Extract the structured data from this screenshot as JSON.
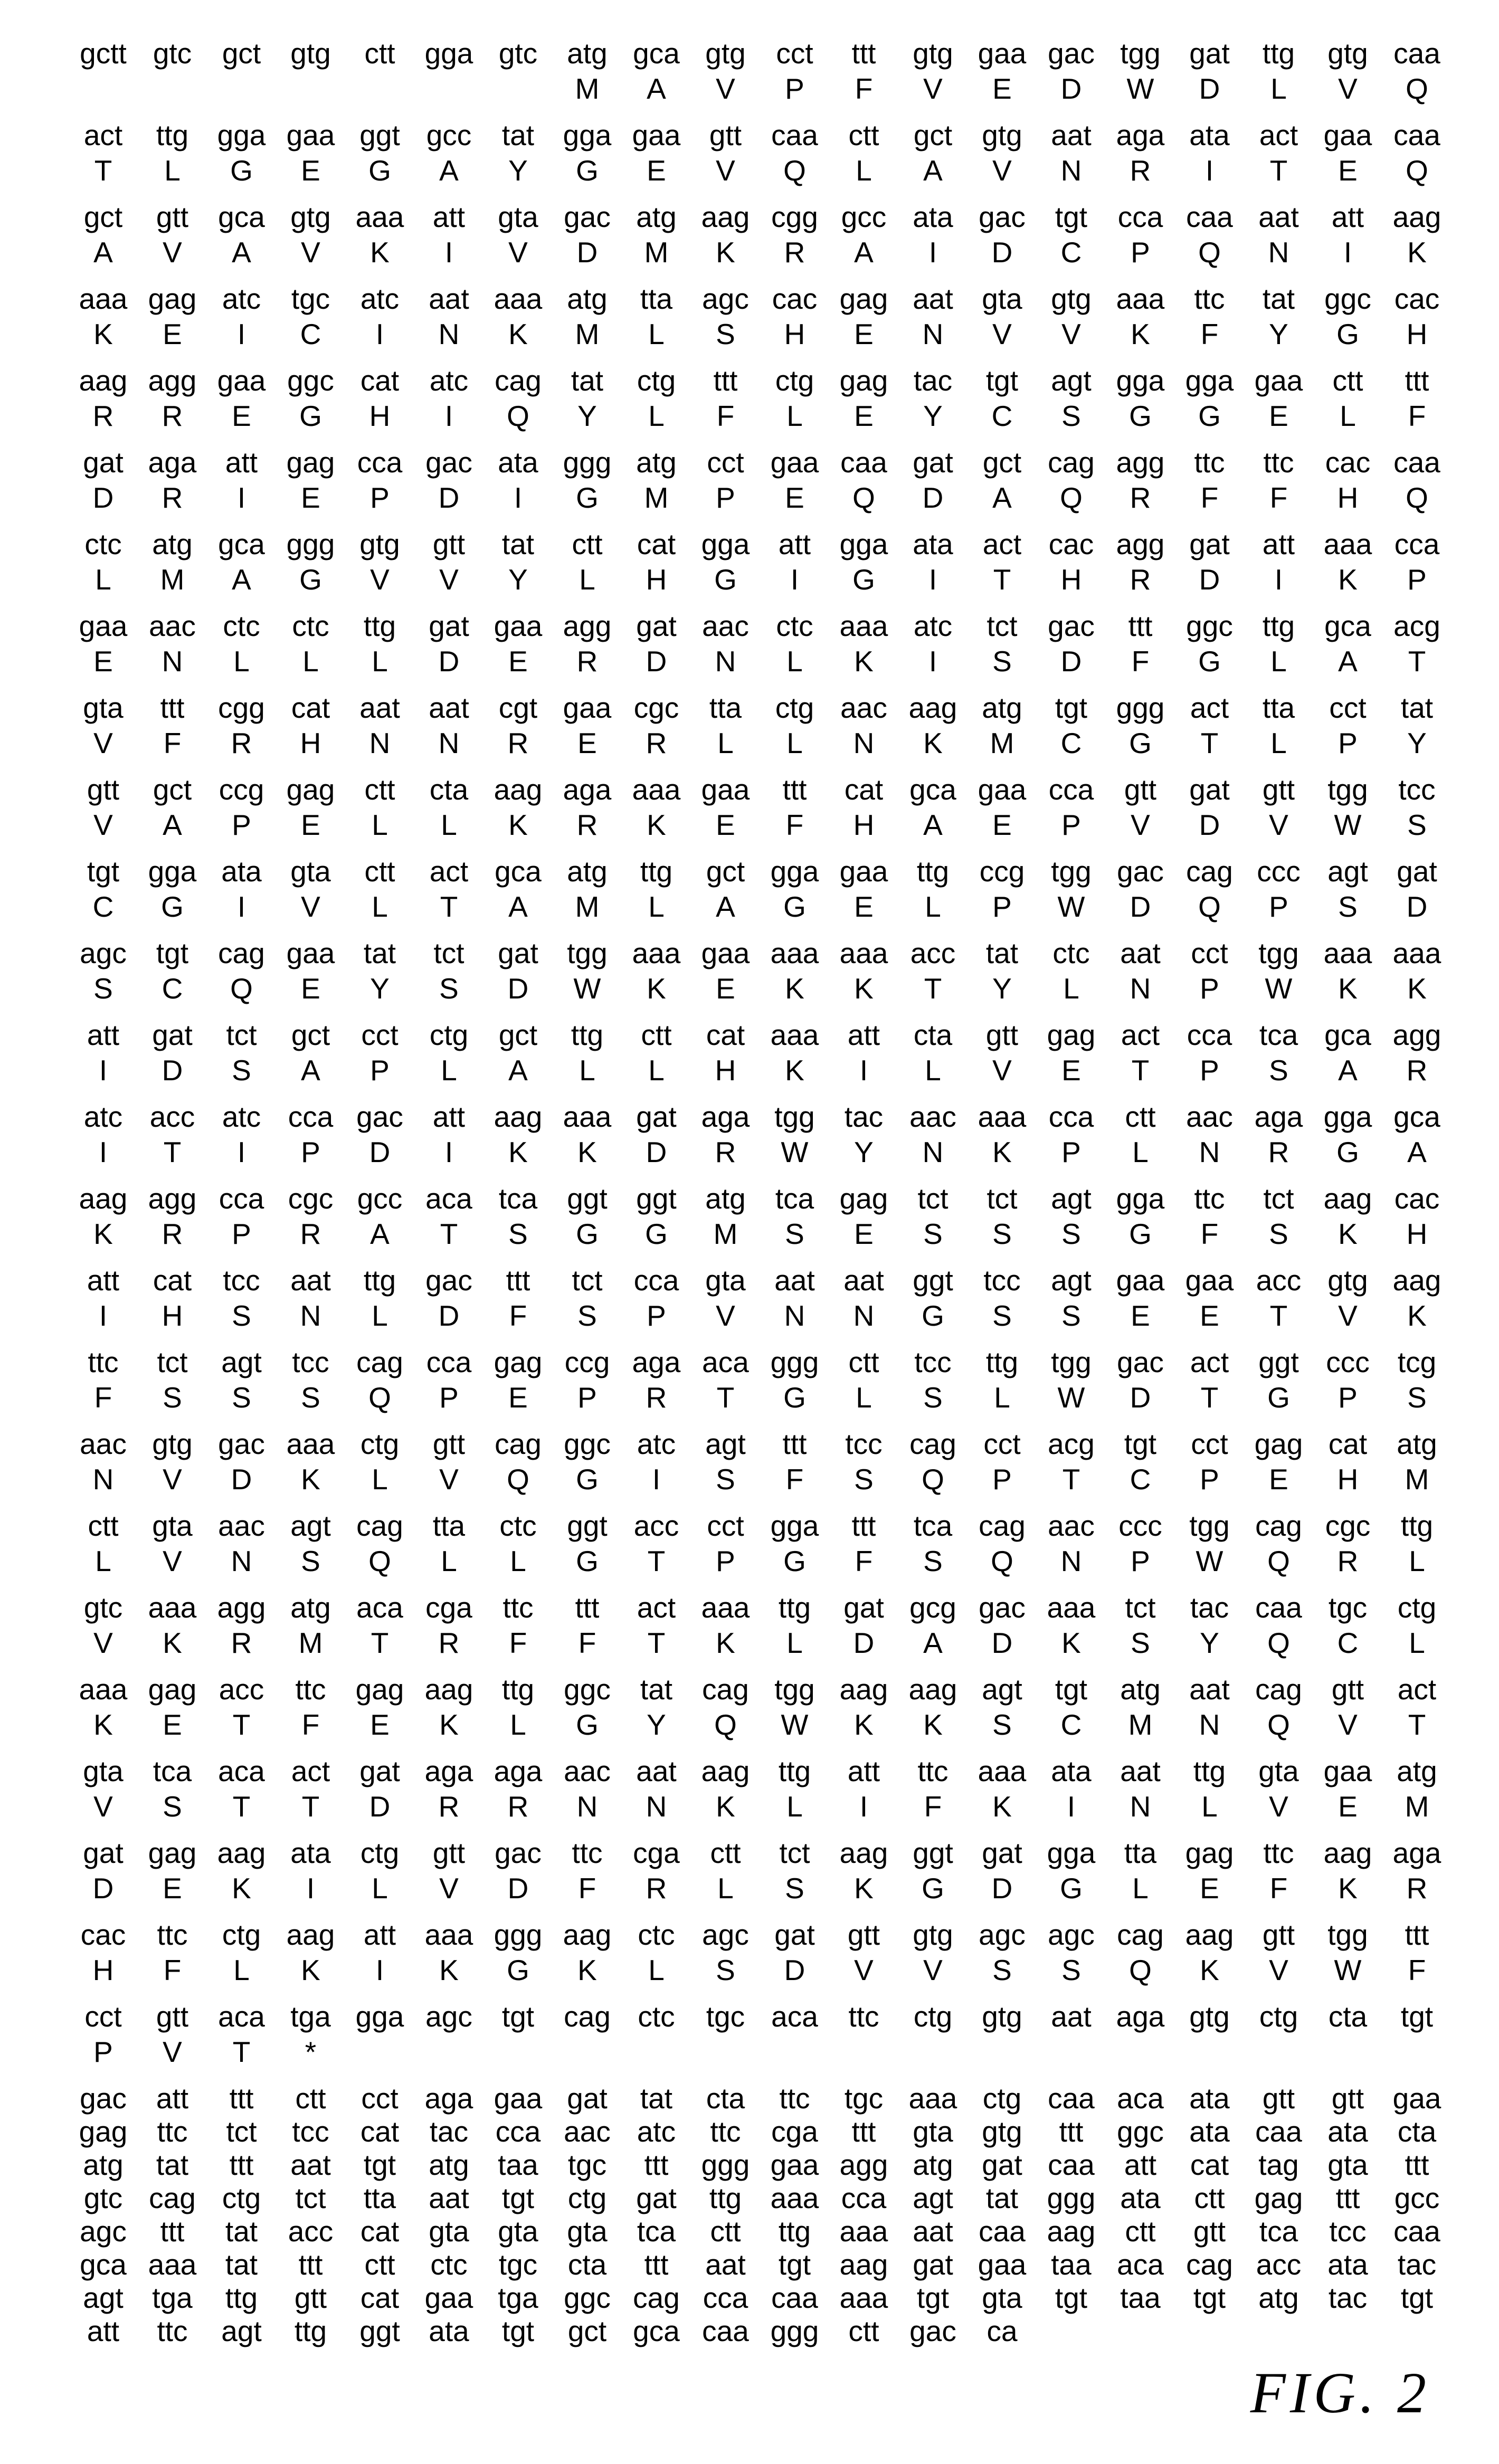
{
  "figureLabel": "FIG. 2",
  "groups": [
    {
      "codons": [
        "gctt",
        "gtc",
        "gct",
        "gtg",
        "ctt",
        "gga",
        "gtc",
        "atg",
        "gca",
        "gtg",
        "cct",
        "ttt",
        "gtg",
        "gaa",
        "gac",
        "tgg",
        "gat",
        "ttg",
        "gtg",
        "caa"
      ],
      "aa": [
        "",
        "",
        "",
        "",
        "",
        "",
        "",
        "M",
        "A",
        "V",
        "P",
        "F",
        "V",
        "E",
        "D",
        "W",
        "D",
        "L",
        "V",
        "Q"
      ]
    },
    {
      "codons": [
        "act",
        "ttg",
        "gga",
        "gaa",
        "ggt",
        "gcc",
        "tat",
        "gga",
        "gaa",
        "gtt",
        "caa",
        "ctt",
        "gct",
        "gtg",
        "aat",
        "aga",
        "ata",
        "act",
        "gaa",
        "caa"
      ],
      "aa": [
        "T",
        "L",
        "G",
        "E",
        "G",
        "A",
        "Y",
        "G",
        "E",
        "V",
        "Q",
        "L",
        "A",
        "V",
        "N",
        "R",
        "I",
        "T",
        "E",
        "Q"
      ]
    },
    {
      "codons": [
        "gct",
        "gtt",
        "gca",
        "gtg",
        "aaa",
        "att",
        "gta",
        "gac",
        "atg",
        "aag",
        "cgg",
        "gcc",
        "ata",
        "gac",
        "tgt",
        "cca",
        "caa",
        "aat",
        "att",
        "aag"
      ],
      "aa": [
        "A",
        "V",
        "A",
        "V",
        "K",
        "I",
        "V",
        "D",
        "M",
        "K",
        "R",
        "A",
        "I",
        "D",
        "C",
        "P",
        "Q",
        "N",
        "I",
        "K"
      ]
    },
    {
      "codons": [
        "aaa",
        "gag",
        "atc",
        "tgc",
        "atc",
        "aat",
        "aaa",
        "atg",
        "tta",
        "agc",
        "cac",
        "gag",
        "aat",
        "gta",
        "gtg",
        "aaa",
        "ttc",
        "tat",
        "ggc",
        "cac"
      ],
      "aa": [
        "K",
        "E",
        "I",
        "C",
        "I",
        "N",
        "K",
        "M",
        "L",
        "S",
        "H",
        "E",
        "N",
        "V",
        "V",
        "K",
        "F",
        "Y",
        "G",
        "H"
      ]
    },
    {
      "codons": [
        "aag",
        "agg",
        "gaa",
        "ggc",
        "cat",
        "atc",
        "cag",
        "tat",
        "ctg",
        "ttt",
        "ctg",
        "gag",
        "tac",
        "tgt",
        "agt",
        "gga",
        "gga",
        "gaa",
        "ctt",
        "ttt"
      ],
      "aa": [
        "R",
        "R",
        "E",
        "G",
        "H",
        "I",
        "Q",
        "Y",
        "L",
        "F",
        "L",
        "E",
        "Y",
        "C",
        "S",
        "G",
        "G",
        "E",
        "L",
        "F"
      ]
    },
    {
      "codons": [
        "gat",
        "aga",
        "att",
        "gag",
        "cca",
        "gac",
        "ata",
        "ggg",
        "atg",
        "cct",
        "gaa",
        "caa",
        "gat",
        "gct",
        "cag",
        "agg",
        "ttc",
        "ttc",
        "cac",
        "caa"
      ],
      "aa": [
        "D",
        "R",
        "I",
        "E",
        "P",
        "D",
        "I",
        "G",
        "M",
        "P",
        "E",
        "Q",
        "D",
        "A",
        "Q",
        "R",
        "F",
        "F",
        "H",
        "Q"
      ]
    },
    {
      "codons": [
        "ctc",
        "atg",
        "gca",
        "ggg",
        "gtg",
        "gtt",
        "tat",
        "ctt",
        "cat",
        "gga",
        "att",
        "gga",
        "ata",
        "act",
        "cac",
        "agg",
        "gat",
        "att",
        "aaa",
        "cca"
      ],
      "aa": [
        "L",
        "M",
        "A",
        "G",
        "V",
        "V",
        "Y",
        "L",
        "H",
        "G",
        "I",
        "G",
        "I",
        "T",
        "H",
        "R",
        "D",
        "I",
        "K",
        "P"
      ]
    },
    {
      "codons": [
        "gaa",
        "aac",
        "ctc",
        "ctc",
        "ttg",
        "gat",
        "gaa",
        "agg",
        "gat",
        "aac",
        "ctc",
        "aaa",
        "atc",
        "tct",
        "gac",
        "ttt",
        "ggc",
        "ttg",
        "gca",
        "acg"
      ],
      "aa": [
        "E",
        "N",
        "L",
        "L",
        "L",
        "D",
        "E",
        "R",
        "D",
        "N",
        "L",
        "K",
        "I",
        "S",
        "D",
        "F",
        "G",
        "L",
        "A",
        "T"
      ]
    },
    {
      "codons": [
        "gta",
        "ttt",
        "cgg",
        "cat",
        "aat",
        "aat",
        "cgt",
        "gaa",
        "cgc",
        "tta",
        "ctg",
        "aac",
        "aag",
        "atg",
        "tgt",
        "ggg",
        "act",
        "tta",
        "cct",
        "tat"
      ],
      "aa": [
        "V",
        "F",
        "R",
        "H",
        "N",
        "N",
        "R",
        "E",
        "R",
        "L",
        "L",
        "N",
        "K",
        "M",
        "C",
        "G",
        "T",
        "L",
        "P",
        "Y"
      ]
    },
    {
      "codons": [
        "gtt",
        "gct",
        "ccg",
        "gag",
        "ctt",
        "cta",
        "aag",
        "aga",
        "aaa",
        "gaa",
        "ttt",
        "cat",
        "gca",
        "gaa",
        "cca",
        "gtt",
        "gat",
        "gtt",
        "tgg",
        "tcc"
      ],
      "aa": [
        "V",
        "A",
        "P",
        "E",
        "L",
        "L",
        "K",
        "R",
        "K",
        "E",
        "F",
        "H",
        "A",
        "E",
        "P",
        "V",
        "D",
        "V",
        "W",
        "S"
      ]
    },
    {
      "codons": [
        "tgt",
        "gga",
        "ata",
        "gta",
        "ctt",
        "act",
        "gca",
        "atg",
        "ttg",
        "gct",
        "gga",
        "gaa",
        "ttg",
        "ccg",
        "tgg",
        "gac",
        "cag",
        "ccc",
        "agt",
        "gat"
      ],
      "aa": [
        "C",
        "G",
        "I",
        "V",
        "L",
        "T",
        "A",
        "M",
        "L",
        "A",
        "G",
        "E",
        "L",
        "P",
        "W",
        "D",
        "Q",
        "P",
        "S",
        "D"
      ]
    },
    {
      "codons": [
        "agc",
        "tgt",
        "cag",
        "gaa",
        "tat",
        "tct",
        "gat",
        "tgg",
        "aaa",
        "gaa",
        "aaa",
        "aaa",
        "acc",
        "tat",
        "ctc",
        "aat",
        "cct",
        "tgg",
        "aaa",
        "aaa"
      ],
      "aa": [
        "S",
        "C",
        "Q",
        "E",
        "Y",
        "S",
        "D",
        "W",
        "K",
        "E",
        "K",
        "K",
        "T",
        "Y",
        "L",
        "N",
        "P",
        "W",
        "K",
        "K"
      ]
    },
    {
      "codons": [
        "att",
        "gat",
        "tct",
        "gct",
        "cct",
        "ctg",
        "gct",
        "ttg",
        "ctt",
        "cat",
        "aaa",
        "att",
        "cta",
        "gtt",
        "gag",
        "act",
        "cca",
        "tca",
        "gca",
        "agg"
      ],
      "aa": [
        "I",
        "D",
        "S",
        "A",
        "P",
        "L",
        "A",
        "L",
        "L",
        "H",
        "K",
        "I",
        "L",
        "V",
        "E",
        "T",
        "P",
        "S",
        "A",
        "R"
      ]
    },
    {
      "codons": [
        "atc",
        "acc",
        "atc",
        "cca",
        "gac",
        "att",
        "aag",
        "aaa",
        "gat",
        "aga",
        "tgg",
        "tac",
        "aac",
        "aaa",
        "cca",
        "ctt",
        "aac",
        "aga",
        "gga",
        "gca"
      ],
      "aa": [
        "I",
        "T",
        "I",
        "P",
        "D",
        "I",
        "K",
        "K",
        "D",
        "R",
        "W",
        "Y",
        "N",
        "K",
        "P",
        "L",
        "N",
        "R",
        "G",
        "A"
      ]
    },
    {
      "codons": [
        "aag",
        "agg",
        "cca",
        "cgc",
        "gcc",
        "aca",
        "tca",
        "ggt",
        "ggt",
        "atg",
        "tca",
        "gag",
        "tct",
        "tct",
        "agt",
        "gga",
        "ttc",
        "tct",
        "aag",
        "cac"
      ],
      "aa": [
        "K",
        "R",
        "P",
        "R",
        "A",
        "T",
        "S",
        "G",
        "G",
        "M",
        "S",
        "E",
        "S",
        "S",
        "S",
        "G",
        "F",
        "S",
        "K",
        "H"
      ]
    },
    {
      "codons": [
        "att",
        "cat",
        "tcc",
        "aat",
        "ttg",
        "gac",
        "ttt",
        "tct",
        "cca",
        "gta",
        "aat",
        "aat",
        "ggt",
        "tcc",
        "agt",
        "gaa",
        "gaa",
        "acc",
        "gtg",
        "aag"
      ],
      "aa": [
        "I",
        "H",
        "S",
        "N",
        "L",
        "D",
        "F",
        "S",
        "P",
        "V",
        "N",
        "N",
        "G",
        "S",
        "S",
        "E",
        "E",
        "T",
        "V",
        "K"
      ]
    },
    {
      "codons": [
        "ttc",
        "tct",
        "agt",
        "tcc",
        "cag",
        "cca",
        "gag",
        "ccg",
        "aga",
        "aca",
        "ggg",
        "ctt",
        "tcc",
        "ttg",
        "tgg",
        "gac",
        "act",
        "ggt",
        "ccc",
        "tcg"
      ],
      "aa": [
        "F",
        "S",
        "S",
        "S",
        "Q",
        "P",
        "E",
        "P",
        "R",
        "T",
        "G",
        "L",
        "S",
        "L",
        "W",
        "D",
        "T",
        "G",
        "P",
        "S"
      ]
    },
    {
      "codons": [
        "aac",
        "gtg",
        "gac",
        "aaa",
        "ctg",
        "gtt",
        "cag",
        "ggc",
        "atc",
        "agt",
        "ttt",
        "tcc",
        "cag",
        "cct",
        "acg",
        "tgt",
        "cct",
        "gag",
        "cat",
        "atg"
      ],
      "aa": [
        "N",
        "V",
        "D",
        "K",
        "L",
        "V",
        "Q",
        "G",
        "I",
        "S",
        "F",
        "S",
        "Q",
        "P",
        "T",
        "C",
        "P",
        "E",
        "H",
        "M"
      ]
    },
    {
      "codons": [
        "ctt",
        "gta",
        "aac",
        "agt",
        "cag",
        "tta",
        "ctc",
        "ggt",
        "acc",
        "cct",
        "gga",
        "ttt",
        "tca",
        "cag",
        "aac",
        "ccc",
        "tgg",
        "cag",
        "cgc",
        "ttg"
      ],
      "aa": [
        "L",
        "V",
        "N",
        "S",
        "Q",
        "L",
        "L",
        "G",
        "T",
        "P",
        "G",
        "F",
        "S",
        "Q",
        "N",
        "P",
        "W",
        "Q",
        "R",
        "L"
      ]
    },
    {
      "codons": [
        "gtc",
        "aaa",
        "agg",
        "atg",
        "aca",
        "cga",
        "ttc",
        "ttt",
        "act",
        "aaa",
        "ttg",
        "gat",
        "gcg",
        "gac",
        "aaa",
        "tct",
        "tac",
        "caa",
        "tgc",
        "ctg"
      ],
      "aa": [
        "V",
        "K",
        "R",
        "M",
        "T",
        "R",
        "F",
        "F",
        "T",
        "K",
        "L",
        "D",
        "A",
        "D",
        "K",
        "S",
        "Y",
        "Q",
        "C",
        "L"
      ]
    },
    {
      "codons": [
        "aaa",
        "gag",
        "acc",
        "ttc",
        "gag",
        "aag",
        "ttg",
        "ggc",
        "tat",
        "cag",
        "tgg",
        "aag",
        "aag",
        "agt",
        "tgt",
        "atg",
        "aat",
        "cag",
        "gtt",
        "act"
      ],
      "aa": [
        "K",
        "E",
        "T",
        "F",
        "E",
        "K",
        "L",
        "G",
        "Y",
        "Q",
        "W",
        "K",
        "K",
        "S",
        "C",
        "M",
        "N",
        "Q",
        "V",
        "T"
      ]
    },
    {
      "codons": [
        "gta",
        "tca",
        "aca",
        "act",
        "gat",
        "aga",
        "aga",
        "aac",
        "aat",
        "aag",
        "ttg",
        "att",
        "ttc",
        "aaa",
        "ata",
        "aat",
        "ttg",
        "gta",
        "gaa",
        "atg"
      ],
      "aa": [
        "V",
        "S",
        "T",
        "T",
        "D",
        "R",
        "R",
        "N",
        "N",
        "K",
        "L",
        "I",
        "F",
        "K",
        "I",
        "N",
        "L",
        "V",
        "E",
        "M"
      ]
    },
    {
      "codons": [
        "gat",
        "gag",
        "aag",
        "ata",
        "ctg",
        "gtt",
        "gac",
        "ttc",
        "cga",
        "ctt",
        "tct",
        "aag",
        "ggt",
        "gat",
        "gga",
        "tta",
        "gag",
        "ttc",
        "aag",
        "aga"
      ],
      "aa": [
        "D",
        "E",
        "K",
        "I",
        "L",
        "V",
        "D",
        "F",
        "R",
        "L",
        "S",
        "K",
        "G",
        "D",
        "G",
        "L",
        "E",
        "F",
        "K",
        "R"
      ]
    },
    {
      "codons": [
        "cac",
        "ttc",
        "ctg",
        "aag",
        "att",
        "aaa",
        "ggg",
        "aag",
        "ctc",
        "agc",
        "gat",
        "gtt",
        "gtg",
        "agc",
        "agc",
        "cag",
        "aag",
        "gtt",
        "tgg",
        "ttt"
      ],
      "aa": [
        "H",
        "F",
        "L",
        "K",
        "I",
        "K",
        "G",
        "K",
        "L",
        "S",
        "D",
        "V",
        "V",
        "S",
        "S",
        "Q",
        "K",
        "V",
        "W",
        "F"
      ]
    },
    {
      "codons": [
        "cct",
        "gtt",
        "aca",
        "tga",
        "gga",
        "agc",
        "tgt",
        "cag",
        "ctc",
        "tgc",
        "aca",
        "ttc",
        "ctg",
        "gtg",
        "aat",
        "aga",
        "gtg",
        "ctg",
        "cta",
        "tgt"
      ],
      "aa": [
        "P",
        "V",
        "T",
        "*",
        "",
        "",
        "",
        "",
        "",
        "",
        "",
        "",
        "",
        "",
        "",
        "",
        "",
        "",
        "",
        ""
      ]
    }
  ],
  "tailRows": [
    [
      "gac",
      "att",
      "ttt",
      "ctt",
      "cct",
      "aga",
      "gaa",
      "gat",
      "tat",
      "cta",
      "ttc",
      "tgc",
      "aaa",
      "ctg",
      "caa",
      "aca",
      "ata",
      "gtt",
      "gtt",
      "gaa"
    ],
    [
      "gag",
      "ttc",
      "tct",
      "tcc",
      "cat",
      "tac",
      "cca",
      "aac",
      "atc",
      "ttc",
      "cga",
      "ttt",
      "gta",
      "gtg",
      "ttt",
      "ggc",
      "ata",
      "caa",
      "ata",
      "cta"
    ],
    [
      "atg",
      "tat",
      "ttt",
      "aat",
      "tgt",
      "atg",
      "taa",
      "tgc",
      "ttt",
      "ggg",
      "gaa",
      "agg",
      "atg",
      "gat",
      "caa",
      "att",
      "cat",
      "tag",
      "gta",
      "ttt"
    ],
    [
      "gtc",
      "cag",
      "ctg",
      "tct",
      "tta",
      "aat",
      "tgt",
      "ctg",
      "gat",
      "ttg",
      "aaa",
      "cca",
      "agt",
      "tat",
      "ggg",
      "ata",
      "ctt",
      "gag",
      "ttt",
      "gcc"
    ],
    [
      "agc",
      "ttt",
      "tat",
      "acc",
      "cat",
      "gta",
      "gta",
      "gta",
      "tca",
      "ctt",
      "ttg",
      "aaa",
      "aat",
      "caa",
      "aag",
      "ctt",
      "gtt",
      "tca",
      "tcc",
      "caa"
    ],
    [
      "gca",
      "aaa",
      "tat",
      "ttt",
      "ctt",
      "ctc",
      "tgc",
      "cta",
      "ttt",
      "aat",
      "tgt",
      "aag",
      "gat",
      "gaa",
      "taa",
      "aca",
      "cag",
      "acc",
      "ata",
      "tac"
    ],
    [
      "agt",
      "tga",
      "ttg",
      "gtt",
      "cat",
      "gaa",
      "tga",
      "ggc",
      "cag",
      "cca",
      "caa",
      "aaa",
      "tgt",
      "gta",
      "tgt",
      "taa",
      "tgt",
      "atg",
      "tac",
      "tgt"
    ],
    [
      "att",
      "ttc",
      "agt",
      "ttg",
      "ggt",
      "ata",
      "tgt",
      "gct",
      "gca",
      "caa",
      "ggg",
      "ctt",
      "gac",
      "ca",
      "",
      "",
      "",
      "",
      "",
      ""
    ]
  ]
}
